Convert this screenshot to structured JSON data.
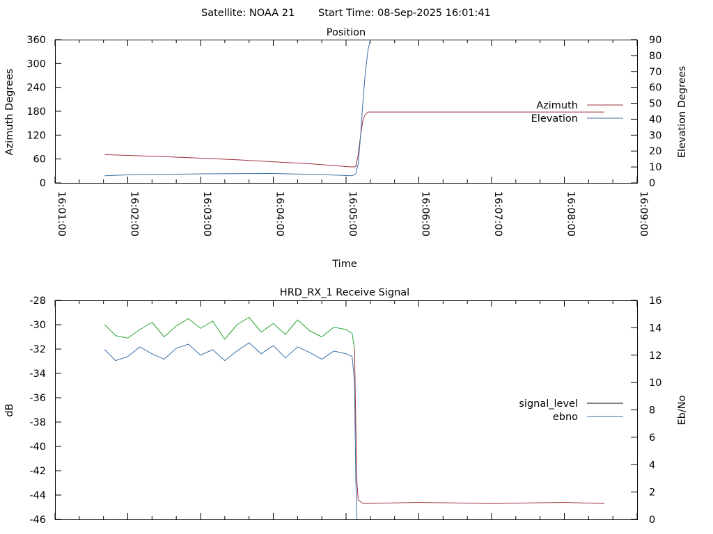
{
  "header": {
    "satellite_label": "Satellite: NOAA 21",
    "start_time_label": "Start Time: 08-Sep-2025 16:01:41"
  },
  "chart_data": [
    {
      "type": "line",
      "title": "Position",
      "xlabel": "Time",
      "ylabel": "Azimuth Degrees",
      "y2label": "Elevation Degrees",
      "xlim": [
        "16:01:00",
        "16:09:00"
      ],
      "ylim": [
        0,
        360
      ],
      "y2lim": [
        0,
        90
      ],
      "x_tick_labels": [
        "16:01:00",
        "16:02:00",
        "16:03:00",
        "16:04:00",
        "16:05:00",
        "16:06:00",
        "16:07:00",
        "16:08:00",
        "16:09:00"
      ],
      "y_tick_labels": [
        "0",
        "60",
        "120",
        "180",
        "240",
        "300",
        "360"
      ],
      "y2_tick_labels": [
        "0",
        "10",
        "20",
        "30",
        "40",
        "50",
        "60",
        "70",
        "80",
        "90"
      ],
      "legend_position": "right",
      "grid": false,
      "series": [
        {
          "name": "Azimuth",
          "axis": "y",
          "color": "#a0303c",
          "points": [
            [
              "16:01:41",
              71
            ],
            [
              "16:02:30",
              66
            ],
            [
              "16:03:30",
              58
            ],
            [
              "16:04:30",
              48
            ],
            [
              "16:05:05",
              40
            ],
            [
              "16:05:08",
              41
            ],
            [
              "16:05:10",
              70
            ],
            [
              "16:05:12",
              120
            ],
            [
              "16:05:14",
              160
            ],
            [
              "16:05:16",
              172
            ],
            [
              "16:05:18",
              178
            ],
            [
              "16:06:30",
              178
            ],
            [
              "16:08:33",
              178
            ]
          ]
        },
        {
          "name": "Elevation",
          "axis": "y2",
          "color": "#3a6ea5",
          "points": [
            [
              "16:01:41",
              4.5
            ],
            [
              "16:02:00",
              5.0
            ],
            [
              "16:03:00",
              5.7
            ],
            [
              "16:04:00",
              5.9
            ],
            [
              "16:04:40",
              5.2
            ],
            [
              "16:05:05",
              4.5
            ],
            [
              "16:05:08",
              5.5
            ],
            [
              "16:05:10",
              12
            ],
            [
              "16:05:12",
              30
            ],
            [
              "16:05:14",
              52
            ],
            [
              "16:05:16",
              70
            ],
            [
              "16:05:18",
              83
            ],
            [
              "16:05:20",
              90
            ]
          ]
        }
      ]
    },
    {
      "type": "line",
      "title": "HRD_RX_1 Receive Signal",
      "ylabel": "dB",
      "y2label": "Eb/No",
      "xlim": [
        "16:01:00",
        "16:09:00"
      ],
      "ylim": [
        -46,
        -28
      ],
      "y2lim": [
        0,
        16
      ],
      "y_tick_labels": [
        "-46",
        "-44",
        "-42",
        "-40",
        "-38",
        "-36",
        "-34",
        "-32",
        "-30",
        "-28"
      ],
      "y2_tick_labels": [
        "0",
        "2",
        "4",
        "6",
        "8",
        "10",
        "12",
        "14",
        "16"
      ],
      "legend_position": "right",
      "grid": false,
      "series": [
        {
          "name": "signal_level",
          "axis": "y",
          "color": "#27a334",
          "color_after_dropout": "#a0303c",
          "legend_color": "#000000",
          "points": [
            [
              "16:01:41",
              -30.0
            ],
            [
              "16:01:50",
              -30.9
            ],
            [
              "16:02:00",
              -31.1
            ],
            [
              "16:02:10",
              -30.4
            ],
            [
              "16:02:20",
              -29.8
            ],
            [
              "16:02:30",
              -31.0
            ],
            [
              "16:02:40",
              -30.1
            ],
            [
              "16:02:50",
              -29.5
            ],
            [
              "16:03:00",
              -30.3
            ],
            [
              "16:03:10",
              -29.7
            ],
            [
              "16:03:20",
              -31.2
            ],
            [
              "16:03:30",
              -30.0
            ],
            [
              "16:03:40",
              -29.4
            ],
            [
              "16:03:50",
              -30.6
            ],
            [
              "16:04:00",
              -29.9
            ],
            [
              "16:04:10",
              -30.8
            ],
            [
              "16:04:20",
              -29.6
            ],
            [
              "16:04:30",
              -30.5
            ],
            [
              "16:04:40",
              -31.0
            ],
            [
              "16:04:50",
              -30.2
            ],
            [
              "16:05:00",
              -30.4
            ],
            [
              "16:05:05",
              -30.7
            ],
            [
              "16:05:07",
              -32.0
            ],
            [
              "16:05:08",
              -38.0
            ],
            [
              "16:05:09",
              -43.0
            ],
            [
              "16:05:10",
              -44.4
            ],
            [
              "16:05:14",
              -44.7
            ],
            [
              "16:06:00",
              -44.6
            ],
            [
              "16:07:00",
              -44.7
            ],
            [
              "16:08:00",
              -44.6
            ],
            [
              "16:08:33",
              -44.7
            ]
          ]
        },
        {
          "name": "ebno",
          "axis": "y2",
          "color": "#3a6ea5",
          "points": [
            [
              "16:01:41",
              12.4
            ],
            [
              "16:01:50",
              11.6
            ],
            [
              "16:02:00",
              11.9
            ],
            [
              "16:02:10",
              12.6
            ],
            [
              "16:02:20",
              12.1
            ],
            [
              "16:02:30",
              11.7
            ],
            [
              "16:02:40",
              12.5
            ],
            [
              "16:02:50",
              12.8
            ],
            [
              "16:03:00",
              12.0
            ],
            [
              "16:03:10",
              12.4
            ],
            [
              "16:03:20",
              11.6
            ],
            [
              "16:03:30",
              12.3
            ],
            [
              "16:03:40",
              12.9
            ],
            [
              "16:03:50",
              12.1
            ],
            [
              "16:04:00",
              12.7
            ],
            [
              "16:04:10",
              11.8
            ],
            [
              "16:04:20",
              12.6
            ],
            [
              "16:04:30",
              12.2
            ],
            [
              "16:04:40",
              11.7
            ],
            [
              "16:04:50",
              12.3
            ],
            [
              "16:05:00",
              12.1
            ],
            [
              "16:05:05",
              11.9
            ],
            [
              "16:05:07",
              10.0
            ],
            [
              "16:05:08",
              3.0
            ],
            [
              "16:05:09",
              0.0
            ]
          ]
        }
      ]
    }
  ]
}
